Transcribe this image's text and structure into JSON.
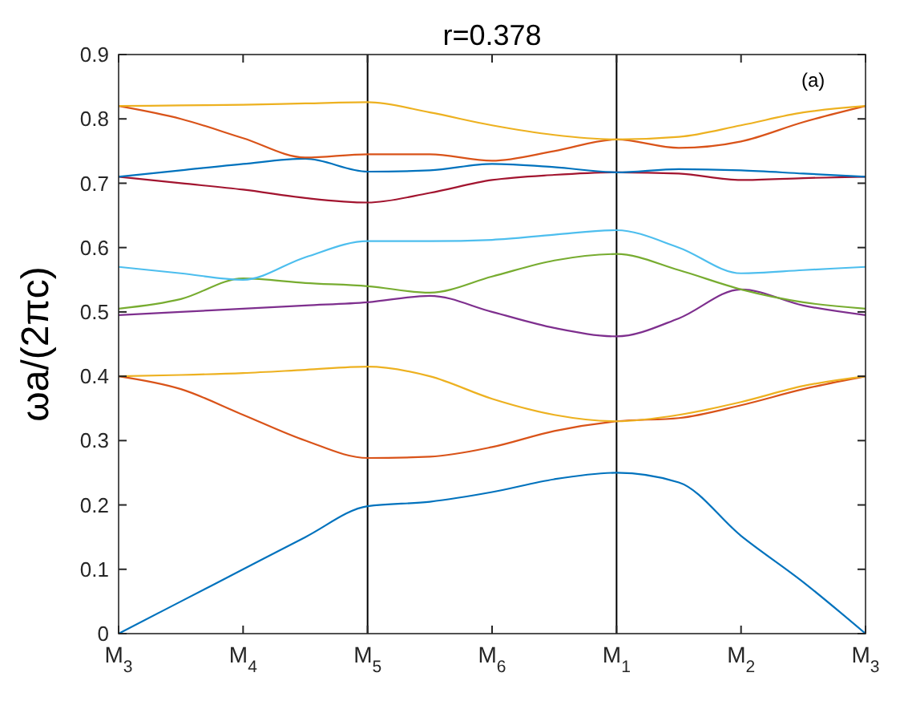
{
  "chart_data": {
    "type": "line",
    "title": "r=0.378",
    "ylabel": "ωa/(2πc)",
    "categories": [
      "M$_{3}$",
      null,
      "M$_{4}$",
      null,
      "M$_{5}$",
      null,
      "M$_{6}$",
      null,
      "M$_{1}$",
      null,
      "M$_{2}$",
      null,
      "M$_{3}$"
    ],
    "ylim": [
      0,
      0.9
    ],
    "yticks": [
      0,
      0.1,
      0.2,
      0.3,
      0.4,
      0.5,
      0.6,
      0.7,
      0.8,
      0.9
    ],
    "series": [
      {
        "color": "#0072bd",
        "values": [
          0,
          0.05,
          0.1,
          0.15,
          0.198,
          0.205,
          0.22,
          0.24,
          0.25,
          0.235,
          0.152,
          0.08,
          0
        ]
      },
      {
        "color": "#d95319",
        "values": [
          0.4,
          0.38,
          0.34,
          0.3,
          0.273,
          0.275,
          0.29,
          0.315,
          0.33,
          0.335,
          0.355,
          0.38,
          0.4
        ]
      },
      {
        "color": "#edb120",
        "values": [
          0.4,
          0.402,
          0.405,
          0.41,
          0.415,
          0.4,
          0.365,
          0.34,
          0.33,
          0.34,
          0.36,
          0.385,
          0.4
        ]
      },
      {
        "color": "#7e2f8e",
        "values": [
          0.495,
          0.5,
          0.505,
          0.51,
          0.515,
          0.525,
          0.5,
          0.475,
          0.462,
          0.49,
          0.535,
          0.51,
          0.495
        ]
      },
      {
        "color": "#77ac30",
        "values": [
          0.505,
          0.52,
          0.552,
          0.545,
          0.54,
          0.53,
          0.555,
          0.58,
          0.59,
          0.565,
          0.535,
          0.515,
          0.505
        ]
      },
      {
        "color": "#4dbeee",
        "values": [
          0.57,
          0.56,
          0.55,
          0.585,
          0.61,
          0.61,
          0.612,
          0.62,
          0.627,
          0.6,
          0.56,
          0.565,
          0.57
        ]
      },
      {
        "color": "#a2142f",
        "values": [
          0.71,
          0.7,
          0.69,
          0.677,
          0.67,
          0.685,
          0.705,
          0.713,
          0.717,
          0.715,
          0.705,
          0.708,
          0.71
        ]
      },
      {
        "color": "#0072bd",
        "values": [
          0.71,
          0.72,
          0.73,
          0.738,
          0.718,
          0.72,
          0.73,
          0.725,
          0.717,
          0.722,
          0.72,
          0.715,
          0.71
        ]
      },
      {
        "color": "#d95319",
        "values": [
          0.82,
          0.8,
          0.77,
          0.74,
          0.745,
          0.745,
          0.735,
          0.75,
          0.768,
          0.755,
          0.765,
          0.795,
          0.82
        ]
      },
      {
        "color": "#edb120",
        "values": [
          0.82,
          0.821,
          0.822,
          0.824,
          0.826,
          0.81,
          0.79,
          0.775,
          0.768,
          0.772,
          0.79,
          0.81,
          0.82
        ]
      }
    ],
    "ref_lines": [
      {
        "axis": "x",
        "value": "M$_{5}$",
        "color": "#000000"
      },
      {
        "axis": "x",
        "value": "M$_{1}$",
        "color": "#000000"
      }
    ],
    "annotations": [
      "(a)"
    ]
  }
}
